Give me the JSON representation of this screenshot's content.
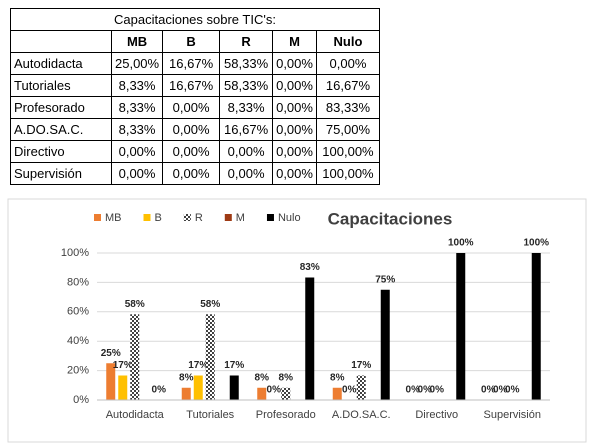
{
  "table": {
    "title": "Capacitaciones sobre TIC's:",
    "columns": [
      "MB",
      "B",
      "R",
      "M",
      "Nulo"
    ],
    "rows": [
      {
        "label": "Autodidacta",
        "cells": [
          "25,00%",
          "16,67%",
          "58,33%",
          "0,00%",
          "0,00%"
        ]
      },
      {
        "label": "Tutoriales",
        "cells": [
          "8,33%",
          "16,67%",
          "58,33%",
          "0,00%",
          "16,67%"
        ]
      },
      {
        "label": "Profesorado",
        "cells": [
          "8,33%",
          "0,00%",
          "8,33%",
          "0,00%",
          "83,33%"
        ]
      },
      {
        "label": "A.DO.SA.C.",
        "cells": [
          "8,33%",
          "0,00%",
          "16,67%",
          "0,00%",
          "75,00%"
        ]
      },
      {
        "label": "Directivo",
        "cells": [
          "0,00%",
          "0,00%",
          "0,00%",
          "0,00%",
          "100,00%"
        ]
      },
      {
        "label": "Supervisión",
        "cells": [
          "0,00%",
          "0,00%",
          "0,00%",
          "0,00%",
          "100,00%"
        ]
      }
    ]
  },
  "chart_data": {
    "type": "bar",
    "title": "Capacitaciones",
    "categories": [
      "Autodidacta",
      "Tutoriales",
      "Profesorado",
      "A.DO.SA.C.",
      "Directivo",
      "Supervisión"
    ],
    "series": [
      {
        "name": "MB",
        "color": "#ed7d31",
        "values": [
          25,
          8.33,
          8.33,
          8.33,
          0,
          0
        ],
        "value_labels": [
          "25%",
          "8%",
          "8%",
          "8%",
          "0%",
          "0%"
        ]
      },
      {
        "name": "B",
        "color": "#ffc000",
        "values": [
          16.67,
          16.67,
          0,
          0,
          0,
          0
        ],
        "value_labels": [
          "17%",
          "17%",
          "0%",
          "0%",
          "0%",
          "0%"
        ]
      },
      {
        "name": "R",
        "color": "#404040",
        "values": [
          58.33,
          58.33,
          8.33,
          16.67,
          0,
          0
        ],
        "value_labels": [
          "58%",
          "58%",
          "8%",
          "17%",
          "0%",
          "0%"
        ]
      },
      {
        "name": "M",
        "color": "#9e3a14",
        "values": [
          0,
          0,
          0,
          0,
          0,
          0
        ]
      },
      {
        "name": "Nulo",
        "color": "#000000",
        "values": [
          0,
          16.67,
          83.33,
          75,
          100,
          100
        ],
        "value_labels": [
          "0%",
          "17%",
          "83%",
          "75%",
          "100%",
          "100%"
        ]
      }
    ],
    "ylim": [
      0,
      100
    ],
    "yticks": [
      {
        "value": 0,
        "label": "0%"
      },
      {
        "value": 20,
        "label": "20%"
      },
      {
        "value": 40,
        "label": "40%"
      },
      {
        "value": 60,
        "label": "60%"
      },
      {
        "value": 80,
        "label": "80%"
      },
      {
        "value": 100,
        "label": "100%"
      }
    ],
    "grid": true,
    "legend": "top-left"
  }
}
